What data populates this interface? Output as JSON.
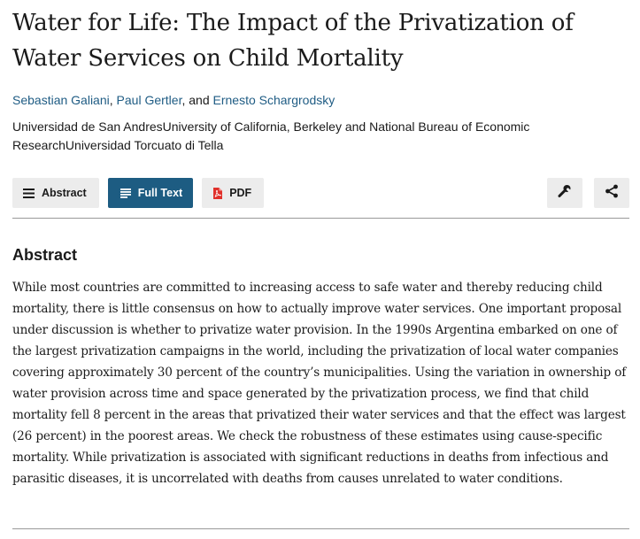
{
  "article": {
    "title": "Water for Life: The Impact of the Privatization of Water Services on Child Mortality",
    "authors": [
      "Sebastian Galiani",
      "Paul Gertler",
      "Ernesto Schargrodsky"
    ],
    "author_sep_1": ", ",
    "author_sep_2": ", and ",
    "affiliations": "Universidad de San AndresUniversity of California, Berkeley and National Bureau of Economic ResearchUniversidad Torcuato di Tella"
  },
  "toolbar": {
    "abstract_label": "Abstract",
    "fulltext_label": "Full Text",
    "pdf_label": "PDF",
    "active_color": "#1d5c82",
    "pdf_icon_color": "#e0302b",
    "icons": [
      "list-icon",
      "document-lines-icon",
      "pdf-icon",
      "wrench-icon",
      "share-icon"
    ]
  },
  "abstract": {
    "heading": "Abstract",
    "text": "While most countries are committed to increasing access to safe water and thereby reducing child mortality, there is little consensus on how to actually improve water services. One important proposal under discussion is whether to privatize water provision. In the 1990s Argentina embarked on one of the largest privatization campaigns in the world, including the privatization of local water companies covering approximately 30 percent of the country’s municipalities. Using the variation in ownership of water provision across time and space generated by the privatization process, we find that child mortality fell 8 percent in the areas that privatized their water services and that the effect was largest (26 percent) in the poorest areas. We check the robustness of these estimates using cause-specific mortality. While privatization is associated with significant reductions in deaths from infectious and parasitic diseases, it is uncorrelated with deaths from causes unrelated to water conditions."
  }
}
